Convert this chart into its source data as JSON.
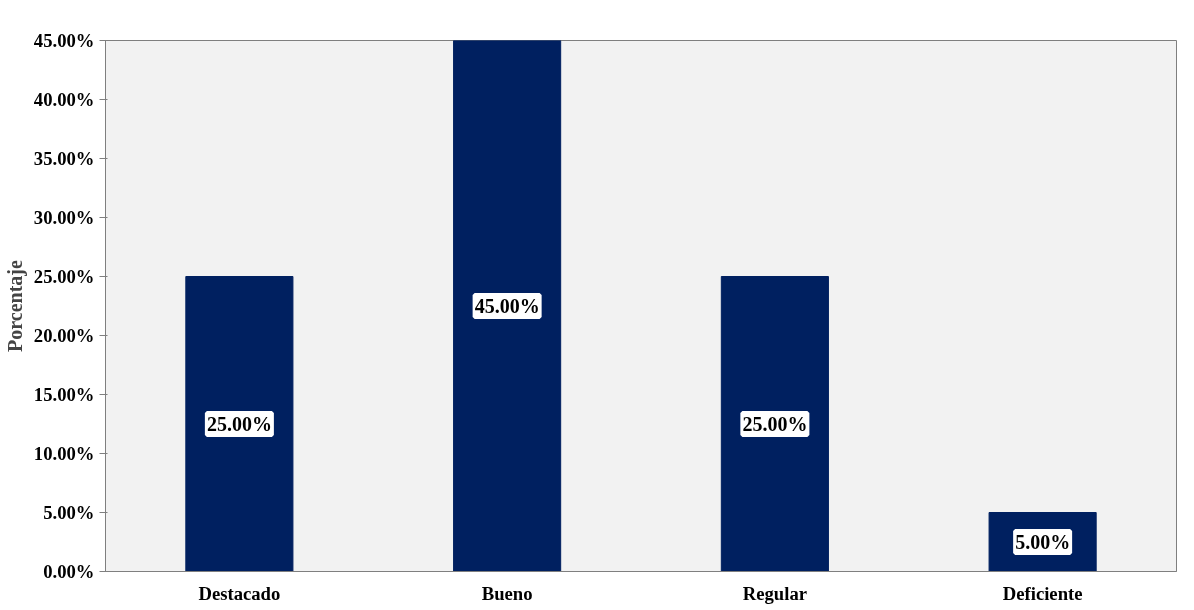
{
  "chart_data": {
    "type": "bar",
    "ylabel": "Porcentaje",
    "categories": [
      "Destacado",
      "Bueno",
      "Regular",
      "Deficiente"
    ],
    "values": [
      25,
      45,
      25,
      5
    ],
    "color": "#002060",
    "value_labels": [
      "25.00%",
      "45.00%",
      "25.00%",
      "5.00%"
    ],
    "ylim": [
      0,
      45
    ],
    "yticks": [
      {
        "value": 0,
        "label": "0.00%"
      },
      {
        "value": 5,
        "label": "5.00%"
      },
      {
        "value": 10,
        "label": "10.00%"
      },
      {
        "value": 15,
        "label": "15.00%"
      },
      {
        "value": 20,
        "label": "20.00%"
      },
      {
        "value": 25,
        "label": "25.00%"
      },
      {
        "value": 30,
        "label": "30.00%"
      },
      {
        "value": 35,
        "label": "35.00%"
      },
      {
        "value": 40,
        "label": "40.00%"
      },
      {
        "value": 45,
        "label": "45.00%"
      }
    ],
    "grid": false
  }
}
